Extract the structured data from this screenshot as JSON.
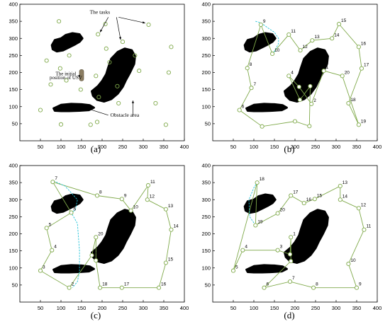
{
  "figure": {
    "panels": [
      "(a)",
      "(b)",
      "(c)",
      "(d)"
    ],
    "annotations": {
      "tasks": "The tasks",
      "usv_line1": "The initial",
      "usv_line2": "position of USV",
      "obstacle": "Obstacle area"
    }
  },
  "colors": {
    "path": "#7fa94a",
    "task": "#7fa94a",
    "detour": "#22c3d8",
    "obstacle": "#000000",
    "usv": "#8c7e62"
  },
  "chart_data": {
    "type": "scatter",
    "xlim": [
      0,
      400
    ],
    "ylim": [
      0,
      400
    ],
    "xticks": [
      50,
      100,
      150,
      200,
      250,
      300,
      350,
      400
    ],
    "yticks": [
      50,
      100,
      150,
      200,
      250,
      300,
      350,
      400
    ],
    "usv_start": [
      150,
      190
    ],
    "obstacles": [
      [
        [
          78,
          280
        ],
        [
          85,
          295
        ],
        [
          100,
          300
        ],
        [
          112,
          310
        ],
        [
          128,
          315
        ],
        [
          145,
          312
        ],
        [
          152,
          300
        ],
        [
          145,
          290
        ],
        [
          135,
          283
        ],
        [
          122,
          275
        ],
        [
          105,
          265
        ],
        [
          90,
          262
        ],
        [
          80,
          268
        ]
      ],
      [
        [
          82,
          95
        ],
        [
          100,
          105
        ],
        [
          125,
          108
        ],
        [
          150,
          107
        ],
        [
          170,
          104
        ],
        [
          180,
          97
        ],
        [
          168,
          90
        ],
        [
          145,
          88
        ],
        [
          120,
          87
        ],
        [
          100,
          87
        ],
        [
          85,
          88
        ]
      ],
      [
        [
          175,
          145
        ],
        [
          190,
          160
        ],
        [
          200,
          175
        ],
        [
          210,
          195
        ],
        [
          215,
          215
        ],
        [
          222,
          240
        ],
        [
          238,
          260
        ],
        [
          255,
          270
        ],
        [
          272,
          265
        ],
        [
          280,
          248
        ],
        [
          278,
          225
        ],
        [
          268,
          200
        ],
        [
          258,
          178
        ],
        [
          250,
          158
        ],
        [
          238,
          138
        ],
        [
          222,
          122
        ],
        [
          205,
          115
        ],
        [
          188,
          120
        ],
        [
          178,
          132
        ]
      ]
    ],
    "tasks": [
      [
        95,
        350
      ],
      [
        190,
        312
      ],
      [
        208,
        342
      ],
      [
        250,
        290
      ],
      [
        313,
        340
      ],
      [
        65,
        235
      ],
      [
        98,
        212
      ],
      [
        120,
        250
      ],
      [
        210,
        270
      ],
      [
        75,
        165
      ],
      [
        113,
        177
      ],
      [
        148,
        150
      ],
      [
        237,
        160
      ],
      [
        185,
        190
      ],
      [
        218,
        230
      ],
      [
        368,
        275
      ],
      [
        362,
        200
      ],
      [
        330,
        110
      ],
      [
        240,
        110
      ],
      [
        355,
        47
      ],
      [
        100,
        48
      ],
      [
        172,
        47
      ],
      [
        50,
        90
      ],
      [
        192,
        128
      ],
      [
        290,
        205
      ],
      [
        280,
        250
      ],
      [
        188,
        55
      ]
    ],
    "routes": [
      {
        "panel": "(b)",
        "path": [
          [
            65,
            90
          ],
          [
            94,
            155
          ],
          [
            84,
            213
          ],
          [
            117,
            340
          ],
          [
            145,
            255
          ],
          [
            185,
            311
          ],
          [
            213,
            265
          ],
          [
            242,
            294
          ],
          [
            290,
            300
          ],
          [
            307,
            342
          ],
          [
            355,
            275
          ],
          [
            362,
            212
          ],
          [
            330,
            110
          ],
          [
            355,
            47
          ],
          [
            315,
            190
          ],
          [
            270,
            205
          ],
          [
            240,
            108
          ],
          [
            210,
            158
          ],
          [
            185,
            190
          ],
          [
            212,
            120
          ],
          [
            237,
            160
          ],
          [
            235,
            43
          ],
          [
            200,
            57
          ],
          [
            120,
            42
          ],
          [
            65,
            90
          ]
        ],
        "labels": [
          "6",
          "7",
          "8",
          "9",
          "10",
          "11",
          "12",
          "13",
          "14",
          "15",
          "16",
          "17",
          "18",
          "19",
          "20",
          "1",
          "2",
          "3",
          "4",
          "5"
        ],
        "detour": [
          [
            104,
            350
          ],
          [
            118,
            345
          ],
          [
            135,
            330
          ],
          [
            150,
            318
          ],
          [
            160,
            300
          ],
          [
            160,
            285
          ],
          [
            150,
            262
          ],
          [
            145,
            255
          ]
        ]
      },
      {
        "panel": "(c)",
        "path": [
          [
            80,
            352
          ],
          [
            125,
            262
          ],
          [
            65,
            217
          ],
          [
            78,
            152
          ],
          [
            50,
            92
          ],
          [
            120,
            42
          ],
          [
            175,
            137
          ],
          [
            185,
            190
          ],
          [
            185,
            122
          ],
          [
            195,
            42
          ],
          [
            248,
            42
          ],
          [
            338,
            42
          ],
          [
            355,
            115
          ],
          [
            368,
            212
          ],
          [
            355,
            272
          ],
          [
            310,
            300
          ],
          [
            312,
            342
          ],
          [
            270,
            268
          ],
          [
            248,
            302
          ],
          [
            188,
            312
          ],
          [
            80,
            352
          ]
        ],
        "labels": [
          "7",
          "6",
          "5",
          "4",
          "3",
          "2",
          "1",
          "20",
          "19",
          "18",
          "17",
          "16",
          "15",
          "14",
          "13",
          "12",
          "11",
          "10",
          "9",
          "8"
        ],
        "detour": [
          [
            82,
            355
          ],
          [
            110,
            340
          ],
          [
            140,
            300
          ],
          [
            135,
            270
          ],
          [
            125,
            262
          ],
          [
            140,
            230
          ],
          [
            145,
            150
          ],
          [
            145,
            90
          ],
          [
            140,
            60
          ],
          [
            128,
            42
          ]
        ]
      },
      {
        "panel": "(d)",
        "path": [
          [
            50,
            92
          ],
          [
            73,
            152
          ],
          [
            158,
            152
          ],
          [
            188,
            140
          ],
          [
            190,
            190
          ],
          [
            190,
            120
          ],
          [
            125,
            42
          ],
          [
            188,
            60
          ],
          [
            245,
            42
          ],
          [
            350,
            42
          ],
          [
            330,
            112
          ],
          [
            368,
            212
          ],
          [
            355,
            275
          ],
          [
            310,
            300
          ],
          [
            310,
            340
          ],
          [
            248,
            302
          ],
          [
            222,
            290
          ],
          [
            190,
            312
          ],
          [
            158,
            260
          ],
          [
            104,
            225
          ],
          [
            108,
            350
          ],
          [
            50,
            92
          ]
        ],
        "labels": [
          "5",
          "4",
          "3",
          "2",
          "1",
          "2",
          "6",
          "7",
          "8",
          "9",
          "10",
          "11",
          "12",
          "14",
          "13",
          "15",
          "16",
          "17",
          "20",
          "19",
          "18"
        ],
        "detour": [
          [
            104,
            225
          ],
          [
            90,
            250
          ],
          [
            88,
            300
          ],
          [
            100,
            335
          ],
          [
            108,
            350
          ]
        ]
      }
    ]
  }
}
